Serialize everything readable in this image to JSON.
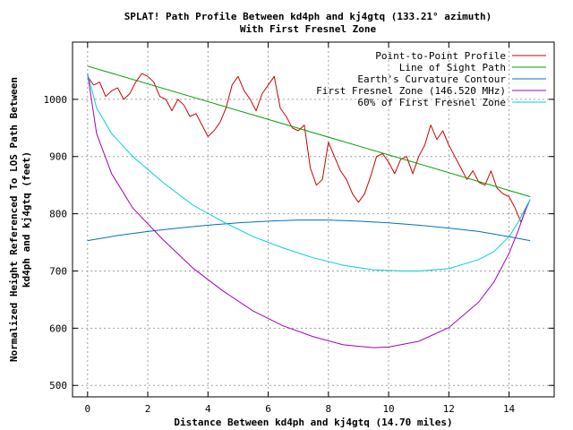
{
  "chart_data": {
    "type": "line",
    "title": "SPLAT! Path Profile Between kd4ph and kj4gtq (133.21° azimuth)",
    "subtitle": "With First Fresnel Zone",
    "xlabel": "Distance Between kd4ph and kj4gtq (14.70 miles)",
    "ylabel_line1": "Normalized Height Referenced To LOS Path Between",
    "ylabel_line2": "kd4ph and kj4gtq (feet)",
    "xlim": [
      -0.5,
      15.5
    ],
    "ylim": [
      480,
      1100
    ],
    "xticks": [
      0,
      2,
      4,
      6,
      8,
      10,
      12,
      14
    ],
    "yticks": [
      500,
      600,
      700,
      800,
      900,
      1000
    ],
    "grid": true,
    "legend_position": "top-right",
    "series": [
      {
        "name": "Point-to-Point Profile",
        "color": "#d00000",
        "x": [
          0,
          0.2,
          0.4,
          0.6,
          0.8,
          1.0,
          1.2,
          1.4,
          1.6,
          1.8,
          2.0,
          2.2,
          2.4,
          2.6,
          2.8,
          3.0,
          3.2,
          3.4,
          3.6,
          3.8,
          4.0,
          4.2,
          4.4,
          4.6,
          4.8,
          5.0,
          5.2,
          5.4,
          5.6,
          5.8,
          6.0,
          6.2,
          6.4,
          6.6,
          6.8,
          7.0,
          7.2,
          7.4,
          7.6,
          7.8,
          8.0,
          8.2,
          8.4,
          8.6,
          8.8,
          9.0,
          9.2,
          9.4,
          9.6,
          9.8,
          10.0,
          10.2,
          10.4,
          10.6,
          10.8,
          11.0,
          11.2,
          11.4,
          11.6,
          11.8,
          12.0,
          12.2,
          12.4,
          12.6,
          12.8,
          13.0,
          13.2,
          13.4,
          13.6,
          13.8,
          14.0,
          14.2,
          14.4,
          14.6
        ],
        "values": [
          1040,
          1025,
          1030,
          1005,
          1015,
          1020,
          1000,
          1010,
          1030,
          1045,
          1040,
          1030,
          1005,
          1000,
          980,
          1000,
          990,
          970,
          975,
          955,
          935,
          945,
          960,
          985,
          1025,
          1040,
          1015,
          1000,
          980,
          1010,
          1025,
          1040,
          985,
          970,
          950,
          945,
          955,
          880,
          850,
          860,
          925,
          900,
          875,
          860,
          835,
          820,
          835,
          865,
          900,
          905,
          890,
          870,
          895,
          900,
          870,
          900,
          920,
          955,
          930,
          945,
          920,
          900,
          880,
          860,
          875,
          855,
          850,
          875,
          845,
          835,
          830,
          810,
          785,
          815
        ]
      },
      {
        "name": "Line of Sight Path",
        "color": "#00a000",
        "x": [
          0,
          14.7
        ],
        "values": [
          1058,
          830
        ]
      },
      {
        "name": "Earth's Curvature Contour",
        "color": "#0070c0",
        "x": [
          0,
          1,
          2,
          3,
          4,
          5,
          6,
          7,
          7.35,
          8,
          9,
          10,
          11,
          12,
          13,
          14,
          14.7
        ],
        "values": [
          753,
          762,
          769,
          775,
          780,
          784,
          787,
          789,
          789,
          789,
          787,
          784,
          780,
          775,
          769,
          760,
          753
        ]
      },
      {
        "name": "First Fresnel Zone (146.520 MHz)",
        "color": "#a000c0",
        "x": [
          0,
          0.3,
          0.8,
          1.5,
          2.5,
          3.5,
          4.5,
          5.5,
          6.5,
          7.5,
          8.5,
          9.5,
          10.0,
          11.0,
          12.0,
          13.0,
          13.5,
          14.0,
          14.3,
          14.5,
          14.7
        ],
        "values": [
          1045,
          940,
          870,
          810,
          755,
          705,
          665,
          630,
          604,
          585,
          571,
          566,
          567,
          577,
          601,
          646,
          681,
          731,
          770,
          800,
          825
        ]
      },
      {
        "name": "60% of First Fresnel Zone",
        "color": "#00d0d0",
        "x": [
          0,
          0.3,
          0.8,
          1.5,
          2.5,
          3.5,
          4.5,
          5.5,
          6.5,
          7.5,
          8.5,
          9.5,
          10.5,
          11.0,
          12.0,
          13.0,
          13.5,
          14.0,
          14.3,
          14.5,
          14.7
        ],
        "values": [
          1045,
          985,
          940,
          900,
          855,
          815,
          786,
          760,
          740,
          723,
          710,
          702,
          700,
          700,
          704,
          720,
          734,
          760,
          785,
          805,
          825
        ]
      }
    ]
  }
}
